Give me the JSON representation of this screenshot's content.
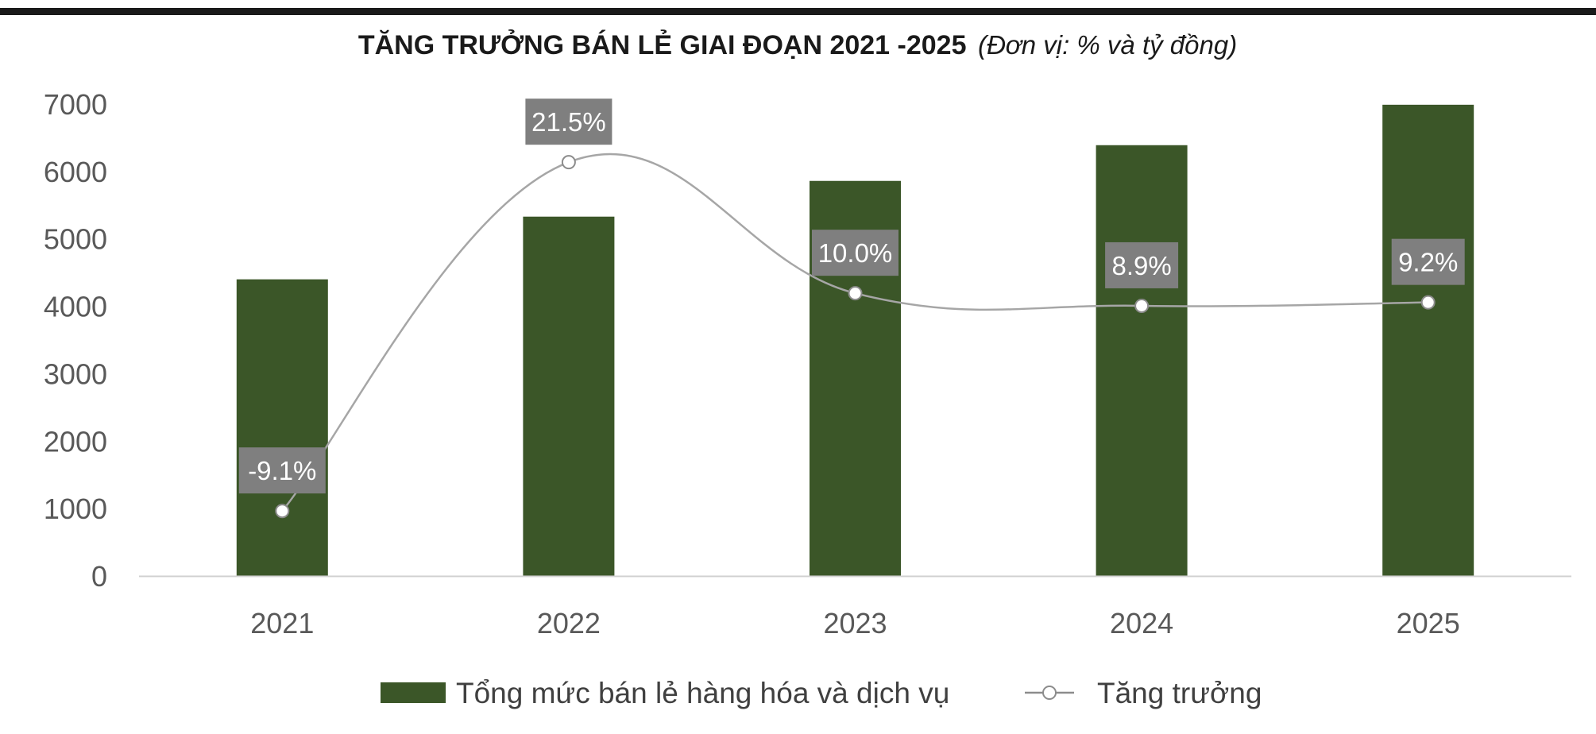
{
  "chart_data": {
    "type": "bar",
    "title": "TĂNG TRƯỞNG BÁN LẺ GIAI ĐOẠN 2021 -2025",
    "subtitle": "(Đơn vị: % và tỷ đồng)",
    "categories": [
      "2021",
      "2022",
      "2023",
      "2024",
      "2025"
    ],
    "ylim": [
      0,
      7000
    ],
    "yticks": [
      "0",
      "1000",
      "2000",
      "3000",
      "4000",
      "5000",
      "6000",
      "7000"
    ],
    "series": [
      {
        "name": "Tổng mức bán lẻ hàng hóa và dịch vụ",
        "type": "bar",
        "color": "#3b5628",
        "values": [
          4400,
          5330,
          5860,
          6390,
          6990
        ]
      },
      {
        "name": "Tăng trưởng",
        "type": "line",
        "color": "#a6a6a6",
        "values": [
          -9.1,
          21.5,
          10.0,
          8.9,
          9.2
        ],
        "labels": [
          "-9.1%",
          "21.5%",
          "10.0%",
          "8.9%",
          "9.2%"
        ]
      }
    ],
    "growth_axis_hidden": true,
    "grid": false,
    "legend_position": "bottom",
    "label_box_color": "#7f7f7f"
  }
}
